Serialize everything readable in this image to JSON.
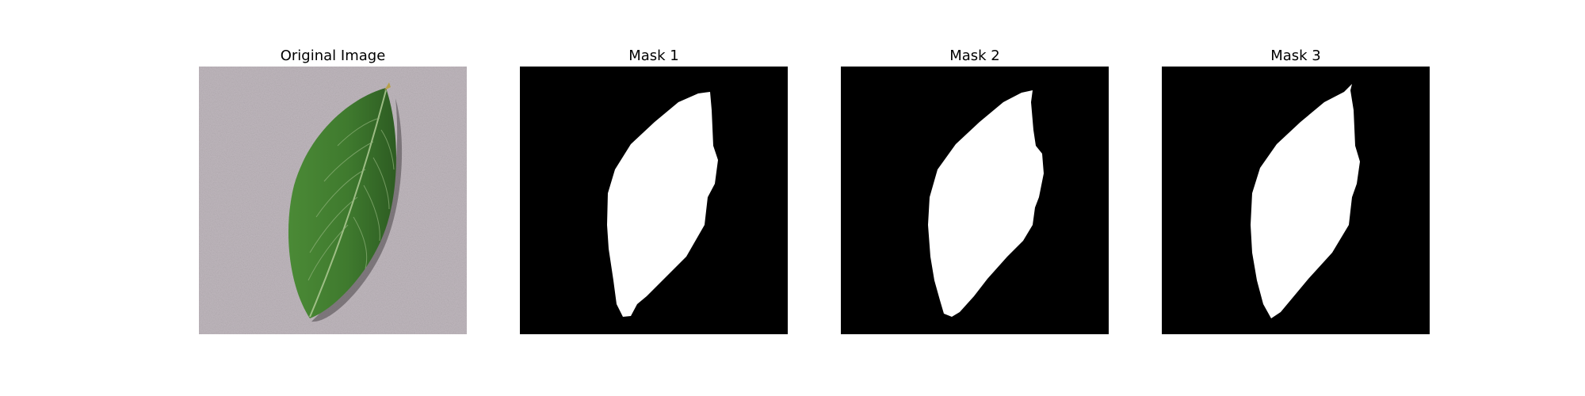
{
  "panels": [
    {
      "title": "Original Image"
    },
    {
      "title": "Mask 1"
    },
    {
      "title": "Mask 2"
    },
    {
      "title": "Mask 3"
    }
  ],
  "colors": {
    "background": "#bfb7bd",
    "leaf": "#3f7a2e",
    "leaf_dark": "#2c5a20",
    "vein": "#a8c58f",
    "mask_bg": "#000000",
    "mask_fg": "#ffffff"
  }
}
